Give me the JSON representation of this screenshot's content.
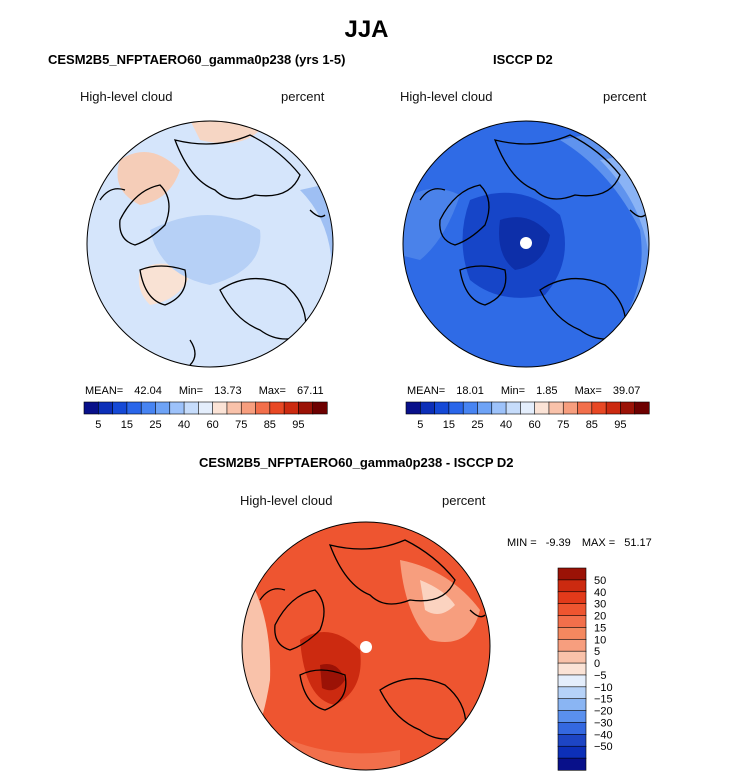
{
  "title": "JJA",
  "chart_data": [
    {
      "type": "heatmap",
      "projection": "north-polar-stereographic",
      "title": "CESM2B5_NFPTAERO60_gamma0p238 (yrs 1-5)",
      "variable": "High-level cloud",
      "units": "percent",
      "stats": {
        "mean_label": "MEAN=",
        "mean": "42.04",
        "min_label": "Min=",
        "min": "13.73",
        "max_label": "Max=",
        "max": "67.11"
      },
      "colorbar": {
        "levels": [
          "5",
          "15",
          "25",
          "40",
          "60",
          "75",
          "85",
          "95"
        ],
        "colors": [
          "#08108a",
          "#0c2fb8",
          "#1549d6",
          "#2a66ea",
          "#4784f2",
          "#6ea3f6",
          "#9dc2fa",
          "#c6dcfb",
          "#e4eefc",
          "#fbe3d6",
          "#f9c2aa",
          "#f79e7e",
          "#f26f4b",
          "#e84824",
          "#cc2a10",
          "#9b1206",
          "#6d0000"
        ]
      }
    },
    {
      "type": "heatmap",
      "projection": "north-polar-stereographic",
      "title": "ISCCP D2",
      "variable": "High-level cloud",
      "units": "percent",
      "stats": {
        "mean_label": "MEAN=",
        "mean": "18.01",
        "min_label": "Min=",
        "min": "1.85",
        "max_label": "Max=",
        "max": "39.07"
      },
      "colorbar": {
        "levels": [
          "5",
          "15",
          "25",
          "40",
          "60",
          "75",
          "85",
          "95"
        ],
        "colors": [
          "#08108a",
          "#0c2fb8",
          "#1549d6",
          "#2a66ea",
          "#4784f2",
          "#6ea3f6",
          "#9dc2fa",
          "#c6dcfb",
          "#e4eefc",
          "#fbe3d6",
          "#f9c2aa",
          "#f79e7e",
          "#f26f4b",
          "#e84824",
          "#cc2a10",
          "#9b1206",
          "#6d0000"
        ]
      }
    },
    {
      "type": "heatmap",
      "projection": "north-polar-stereographic",
      "title": "CESM2B5_NFPTAERO60_gamma0p238 - ISCCP D2",
      "variable": "High-level cloud",
      "units": "percent",
      "stats": {
        "min_label": "MIN =",
        "min": "-9.39",
        "max_label": "MAX =",
        "max": "51.17"
      },
      "colorbar": {
        "orientation": "vertical",
        "levels": [
          "50",
          "40",
          "30",
          "20",
          "15",
          "10",
          "5",
          "0",
          "−5",
          "−10",
          "−15",
          "−20",
          "−30",
          "−40",
          "−50"
        ],
        "colors": [
          "#9b1206",
          "#cc2a10",
          "#e23a1a",
          "#ee5530",
          "#f26f4b",
          "#f4885f",
          "#f79e7e",
          "#f9c2aa",
          "#fbe3d6",
          "#e4eefc",
          "#b6d2f8",
          "#8ab5f3",
          "#5a90ee",
          "#3468e0",
          "#1d45c4",
          "#0c2fb8",
          "#08108a"
        ]
      }
    }
  ]
}
